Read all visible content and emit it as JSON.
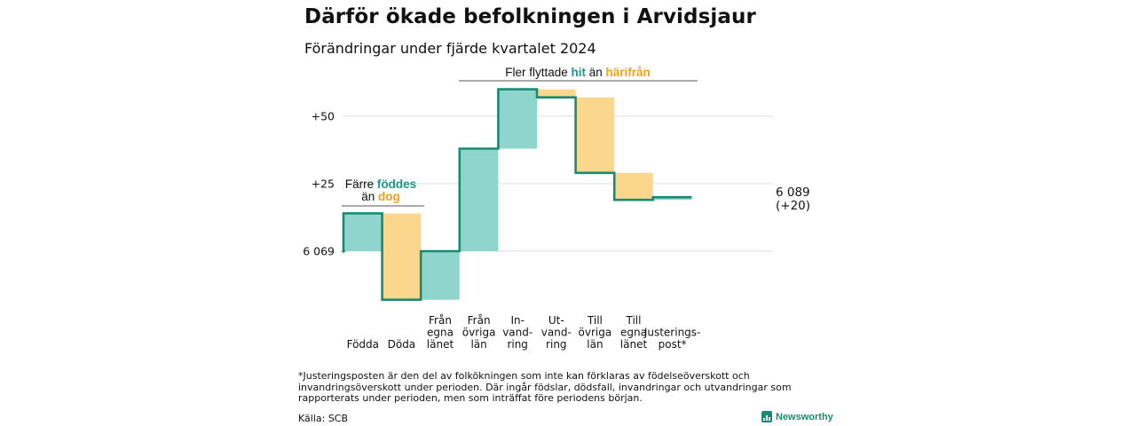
{
  "title": "Därför ökade befolkningen i Arvidsjaur",
  "subtitle": "Förändringar under fjärde kvartalet 2024",
  "footnote": "*Justeringsposten är den del av folkökningen som inte kan förklaras av födelseöverskott och invandringsöverskott under perioden. Där ingår födslar, dödsfall, invandringar och utvandringar som rapporterats under perioden, men som inträffat före periodens början.",
  "source": "Källa: SCB",
  "brand": "Newsworthy",
  "colors": {
    "increase": "#8fd5cd",
    "decrease": "#fbd78e",
    "line": "#1a8a73",
    "teal_text": "#1a9a86",
    "orange_text": "#f0a020",
    "grid": "#dddddd"
  },
  "annotations": {
    "births_deaths": {
      "line1": "Färre",
      "teal": "föddes",
      "line2": "än",
      "orange": "dog"
    },
    "migration": {
      "prefix": "Fler flyttade",
      "teal": "hit",
      "middle": "än",
      "orange": "härifrån"
    }
  },
  "chart_data": {
    "type": "waterfall",
    "start_value": 6069,
    "start_label": "6 069",
    "end_label": "6 089",
    "end_change_label": "(+20)",
    "ylim": [
      -18,
      60
    ],
    "yticks": [
      {
        "value": 0,
        "label": "6 069"
      },
      {
        "value": 25,
        "label": "+25"
      },
      {
        "value": 50,
        "label": "+50"
      }
    ],
    "steps": [
      {
        "key": "fodda",
        "label": [
          "Födda"
        ],
        "change": 14
      },
      {
        "key": "doda",
        "label": [
          "Döda"
        ],
        "change": -32
      },
      {
        "key": "fran-egna-lanet",
        "label": [
          "Från",
          "egna",
          "länet"
        ],
        "change": 18
      },
      {
        "key": "fran-ovriga-lan",
        "label": [
          "Från",
          "övriga",
          "län"
        ],
        "change": 38
      },
      {
        "key": "invandring",
        "label": [
          "In-",
          "vand-",
          "ring"
        ],
        "change": 22
      },
      {
        "key": "utvandring",
        "label": [
          "Ut-",
          "vand-",
          "ring"
        ],
        "change": -3
      },
      {
        "key": "till-ovriga-lan",
        "label": [
          "Till",
          "övriga",
          "län"
        ],
        "change": -28
      },
      {
        "key": "till-egna-lanet",
        "label": [
          "Till",
          "egna",
          "länet"
        ],
        "change": -10
      },
      {
        "key": "justeringspost",
        "label": [
          "Justerings-",
          "post*"
        ],
        "change": 1
      }
    ]
  }
}
